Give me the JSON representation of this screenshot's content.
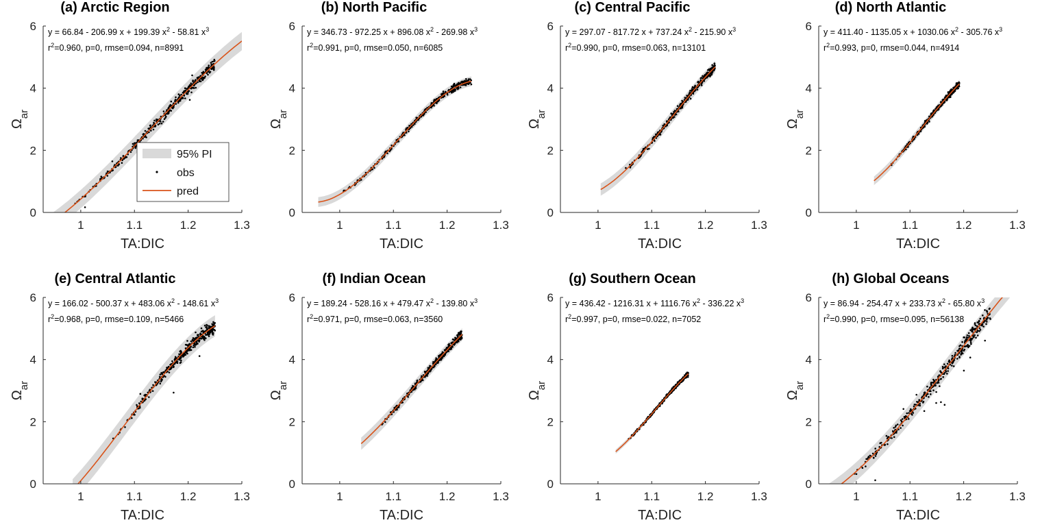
{
  "chart_data": [
    {
      "type": "scatter",
      "title": "(a) Arctic Region",
      "equation": "y = 66.84 - 206.99 x + 199.39 x^2 - 58.81 x^3",
      "stats": "r^2=0.960, p=0, rmse=0.094, n=8991",
      "coef": [
        66.84,
        -206.99,
        199.39,
        -58.81
      ],
      "rmse": 0.094,
      "fit_range": [
        0.93,
        1.3
      ],
      "obs_range": [
        0.94,
        1.25
      ],
      "spread": 0.1,
      "outliers": 0.02,
      "xlabel": "TA:DIC",
      "ylabel": "Ω_ar",
      "xlim": [
        0.93,
        1.3
      ],
      "ylim": [
        0,
        6
      ],
      "xticks": [
        1,
        1.1,
        1.2,
        1.3
      ],
      "yticks": [
        0,
        2,
        4,
        6
      ],
      "legend": {
        "placement": "center",
        "entries": [
          "95% PI",
          "obs",
          "pred"
        ]
      }
    },
    {
      "type": "scatter",
      "title": "(b) North Pacific",
      "equation": "y = 346.73 - 972.25 x + 896.08 x^2 - 269.98 x^3",
      "stats": "r^2=0.991, p=0, rmse=0.050, n=6085",
      "coef": [
        346.73,
        -972.25,
        896.08,
        -269.98
      ],
      "rmse": 0.05,
      "fit_range": [
        0.96,
        1.245
      ],
      "obs_range": [
        0.96,
        1.245
      ],
      "spread": 0.06,
      "outliers": 0.0,
      "xlabel": "TA:DIC",
      "ylabel": "Ω_ar",
      "xlim": [
        0.93,
        1.3
      ],
      "ylim": [
        0,
        6
      ],
      "xticks": [
        1,
        1.1,
        1.2,
        1.3
      ],
      "yticks": [
        0,
        2,
        4,
        6
      ]
    },
    {
      "type": "scatter",
      "title": "(c) Central Pacific",
      "equation": "y = 297.07 - 817.72 x + 737.24 x^2 - 215.90 x^3",
      "stats": "r^2=0.990, p=0, rmse=0.063, n=13101",
      "coef": [
        297.07,
        -817.72,
        737.24,
        -215.9
      ],
      "rmse": 0.063,
      "fit_range": [
        1.005,
        1.218
      ],
      "obs_range": [
        1.005,
        1.218
      ],
      "spread": 0.08,
      "outliers": 0.0,
      "xlabel": "TA:DIC",
      "ylabel": "Ω_ar",
      "xlim": [
        0.93,
        1.3
      ],
      "ylim": [
        0,
        6
      ],
      "xticks": [
        1,
        1.1,
        1.2,
        1.3
      ],
      "yticks": [
        0,
        2,
        4,
        6
      ]
    },
    {
      "type": "scatter",
      "title": "(d) North Atlantic",
      "equation": "y = 411.40 - 1135.05 x + 1030.06 x^2 - 305.76 x^3",
      "stats": "r^2=0.993, p=0, rmse=0.044, n=4914",
      "coef": [
        411.4,
        -1135.05,
        1030.06,
        -305.76
      ],
      "rmse": 0.044,
      "fit_range": [
        1.033,
        1.192
      ],
      "obs_range": [
        1.033,
        1.192
      ],
      "spread": 0.06,
      "outliers": 0.0,
      "xlabel": "TA:DIC",
      "ylabel": "Ω_ar",
      "xlim": [
        0.93,
        1.3
      ],
      "ylim": [
        0,
        6
      ],
      "xticks": [
        1,
        1.1,
        1.2,
        1.3
      ],
      "yticks": [
        0,
        2,
        4,
        6
      ]
    },
    {
      "type": "scatter",
      "title": "(e) Central Atlantic",
      "equation": "y = 166.02 - 500.37 x + 483.06 x^2 - 148.61 x^3",
      "stats": "r^2=0.968, p=0, rmse=0.109, n=5466",
      "coef": [
        166.02,
        -500.37,
        483.06,
        -148.61
      ],
      "rmse": 0.109,
      "fit_range": [
        0.985,
        1.25
      ],
      "obs_range": [
        1.02,
        1.25
      ],
      "spread": 0.12,
      "outliers": 0.02,
      "xlabel": "TA:DIC",
      "ylabel": "Ω_ar",
      "xlim": [
        0.93,
        1.3
      ],
      "ylim": [
        0,
        6
      ],
      "xticks": [
        1,
        1.1,
        1.2,
        1.3
      ],
      "yticks": [
        0,
        2,
        4,
        6
      ]
    },
    {
      "type": "scatter",
      "title": "(f) Indian Ocean",
      "equation": "y = 189.24 - 528.16 x + 479.47 x^2 - 139.80 x^3",
      "stats": "r^2=0.971, p=0, rmse=0.063, n=3560",
      "coef": [
        189.24,
        -528.16,
        479.47,
        -139.8
      ],
      "rmse": 0.063,
      "fit_range": [
        1.04,
        1.228
      ],
      "obs_range": [
        1.04,
        1.228
      ],
      "spread": 0.08,
      "outliers": 0.0,
      "xlabel": "TA:DIC",
      "ylabel": "Ω_ar",
      "xlim": [
        0.93,
        1.3
      ],
      "ylim": [
        0,
        6
      ],
      "xticks": [
        1,
        1.1,
        1.2,
        1.3
      ],
      "yticks": [
        0,
        2,
        4,
        6
      ]
    },
    {
      "type": "scatter",
      "title": "(g) Southern Ocean",
      "equation": "y = 436.42 - 1216.31 x + 1116.76 x^2 - 336.22 x^3",
      "stats": "r^2=0.997, p=0, rmse=0.022, n=7052",
      "coef": [
        436.42,
        -1216.31,
        1116.76,
        -336.22
      ],
      "rmse": 0.022,
      "fit_range": [
        1.033,
        1.168
      ],
      "obs_range": [
        1.033,
        1.168
      ],
      "spread": 0.04,
      "outliers": 0.0,
      "xlabel": "TA:DIC",
      "ylabel": "Ω_ar",
      "xlim": [
        0.93,
        1.3
      ],
      "ylim": [
        0,
        6
      ],
      "xticks": [
        1,
        1.1,
        1.2,
        1.3
      ],
      "yticks": [
        0,
        2,
        4,
        6
      ]
    },
    {
      "type": "scatter",
      "title": "(h) Global Oceans",
      "equation": "y = 86.94 - 254.47 x + 233.73 x^2 - 65.80 x^3",
      "stats": "r^2=0.990, p=0, rmse=0.095, n=56138",
      "coef": [
        86.94,
        -254.47,
        233.73,
        -65.8
      ],
      "rmse": 0.095,
      "fit_range": [
        0.93,
        1.3
      ],
      "obs_range": [
        0.94,
        1.25
      ],
      "spread": 0.16,
      "outliers": 0.03,
      "xlabel": "TA:DIC",
      "ylabel": "Ω_ar",
      "xlim": [
        0.93,
        1.3
      ],
      "ylim": [
        0,
        6
      ],
      "xticks": [
        1,
        1.1,
        1.2,
        1.3
      ],
      "yticks": [
        0,
        2,
        4,
        6
      ]
    }
  ],
  "colors": {
    "pred": "#d95319",
    "obs": "#000000",
    "pi": "#d9d9d9",
    "axis": "#262626"
  }
}
